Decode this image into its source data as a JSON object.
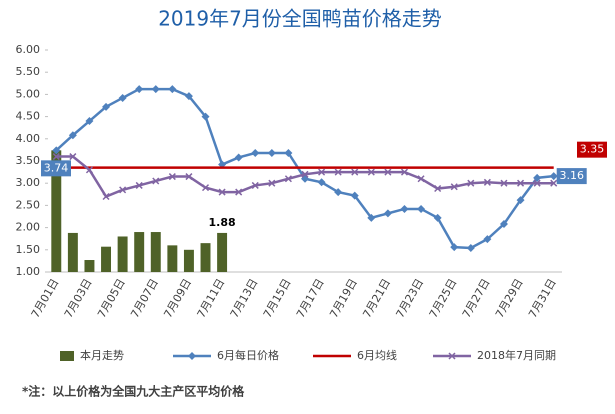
{
  "chart_data": {
    "type": "combo",
    "title": "2019年7月份全国鸭苗价格走势",
    "note": "*注：以上价格为全国九大主产区平均价格",
    "categories": [
      "7月01日",
      null,
      "7月03日",
      null,
      "7月05日",
      null,
      "7月07日",
      null,
      "7月09日",
      null,
      "7月11日",
      null,
      "7月13日",
      null,
      "7月15日",
      null,
      "7月17日",
      null,
      "7月19日",
      null,
      "7月21日",
      null,
      "7月23日",
      null,
      "7月25日",
      null,
      "7月27日",
      null,
      "7月29日",
      null,
      "7月31日"
    ],
    "ylim": [
      1,
      6
    ],
    "yticks": [
      {
        "value": 1,
        "label": "1.00"
      },
      {
        "value": 1.5,
        "label": "1.50"
      },
      {
        "value": 2,
        "label": "2.00"
      },
      {
        "value": 2.5,
        "label": "2.50"
      },
      {
        "value": 3,
        "label": "3.00"
      },
      {
        "value": 3.5,
        "label": "3.50"
      },
      {
        "value": 4,
        "label": "4.00"
      },
      {
        "value": 4.5,
        "label": "4.50"
      },
      {
        "value": 5,
        "label": "5.00"
      },
      {
        "value": 5.5,
        "label": "5.50"
      },
      {
        "value": 6,
        "label": "6.00"
      }
    ],
    "grid": false,
    "legend": "bottom",
    "series": [
      {
        "name": "本月走势",
        "type": "bar",
        "color": "#4f6228",
        "values": [
          3.74,
          1.88,
          1.27,
          1.57,
          1.8,
          1.9,
          1.9,
          1.6,
          1.5,
          1.65,
          1.88,
          null,
          null,
          null,
          null,
          null,
          null,
          null,
          null,
          null,
          null,
          null,
          null,
          null,
          null,
          null,
          null,
          null,
          null,
          null,
          null
        ]
      },
      {
        "name": "6月每日价格",
        "type": "line",
        "marker": "diamond",
        "color": "#4f81bd",
        "values": [
          3.74,
          4.08,
          4.4,
          4.72,
          4.92,
          5.12,
          5.12,
          5.12,
          4.96,
          4.5,
          3.42,
          3.58,
          3.68,
          3.68,
          3.68,
          3.1,
          3.02,
          2.8,
          2.72,
          2.22,
          2.32,
          2.42,
          2.42,
          2.22,
          1.56,
          1.54,
          1.74,
          2.08,
          2.62,
          3.12,
          3.16
        ]
      },
      {
        "name": "6月均线",
        "type": "line",
        "marker": "none",
        "color": "#c00000",
        "values": [
          3.35,
          3.35,
          3.35,
          3.35,
          3.35,
          3.35,
          3.35,
          3.35,
          3.35,
          3.35,
          3.35,
          3.35,
          3.35,
          3.35,
          3.35,
          3.35,
          3.35,
          3.35,
          3.35,
          3.35,
          3.35,
          3.35,
          3.35,
          3.35,
          3.35,
          3.35,
          3.35,
          3.35,
          3.35,
          3.35,
          3.35
        ]
      },
      {
        "name": "2018年7月同期",
        "type": "line",
        "marker": "x",
        "color": "#8064a2",
        "values": [
          3.6,
          3.6,
          3.3,
          2.7,
          2.85,
          2.95,
          3.05,
          3.15,
          3.15,
          2.9,
          2.8,
          2.8,
          2.95,
          3.0,
          3.1,
          3.2,
          3.25,
          3.25,
          3.25,
          3.25,
          3.25,
          3.25,
          3.1,
          2.88,
          2.92,
          3.0,
          3.02,
          3.0,
          3.0,
          3.0,
          3.0
        ]
      }
    ]
  }
}
